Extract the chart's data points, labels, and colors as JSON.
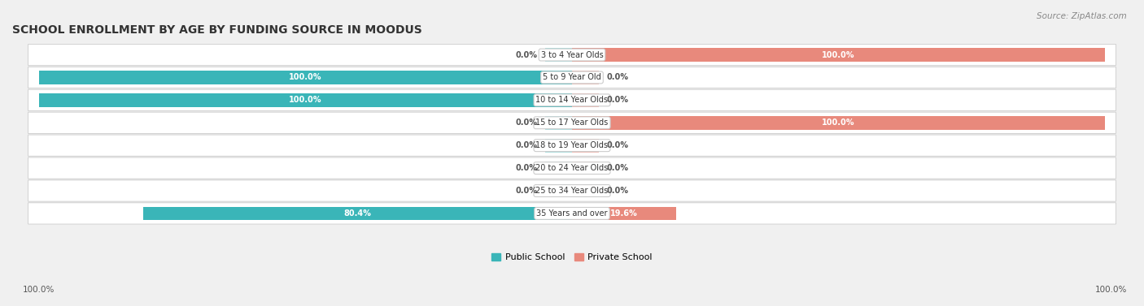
{
  "title": "SCHOOL ENROLLMENT BY AGE BY FUNDING SOURCE IN MOODUS",
  "source": "Source: ZipAtlas.com",
  "categories": [
    "3 to 4 Year Olds",
    "5 to 9 Year Old",
    "10 to 14 Year Olds",
    "15 to 17 Year Olds",
    "18 to 19 Year Olds",
    "20 to 24 Year Olds",
    "25 to 34 Year Olds",
    "35 Years and over"
  ],
  "public_values": [
    0.0,
    100.0,
    100.0,
    0.0,
    0.0,
    0.0,
    0.0,
    80.4
  ],
  "private_values": [
    100.0,
    0.0,
    0.0,
    100.0,
    0.0,
    0.0,
    0.0,
    19.6
  ],
  "public_color": "#3ab5b8",
  "private_color": "#e8897c",
  "public_color_light": "#a8dfe0",
  "private_color_light": "#f0b8b0",
  "background_color": "#f0f0f0",
  "row_bg_color_light": "#f8f8f8",
  "row_bg_color_dark": "#ebebeb",
  "title_fontsize": 10,
  "label_fontsize": 7,
  "category_fontsize": 7,
  "legend_fontsize": 8,
  "axis_label_fontsize": 7.5,
  "figsize": [
    14.06,
    3.77
  ]
}
